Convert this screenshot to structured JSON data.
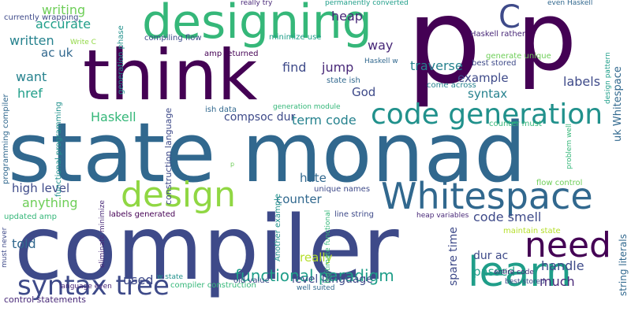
{
  "words": [
    {
      "text": "p",
      "color": "#440154"
    },
    {
      "text": "p",
      "color": "#440154"
    },
    {
      "text": "state monad",
      "color": "#31688e"
    },
    {
      "text": "compiler",
      "color": "#3e4a89"
    },
    {
      "text": "think",
      "color": "#440154"
    },
    {
      "text": "designing",
      "color": "#35b779"
    },
    {
      "text": "Whitespace",
      "color": "#31688e"
    },
    {
      "text": "code generation",
      "color": "#21918c"
    },
    {
      "text": "design",
      "color": "#90d743"
    },
    {
      "text": "need",
      "color": "#440154"
    },
    {
      "text": "learn",
      "color": "#1f9e89"
    },
    {
      "text": "syntax tree",
      "color": "#3e4a89"
    },
    {
      "text": "functional paradigm",
      "color": "#1f9e89"
    },
    {
      "text": "C",
      "color": "#3e4a89"
    },
    {
      "text": "writing",
      "color": "#6ece58"
    },
    {
      "text": "accurate",
      "color": "#1f9e89"
    },
    {
      "text": "written",
      "color": "#26828e"
    },
    {
      "text": "ac uk",
      "color": "#31688e"
    },
    {
      "text": "want",
      "color": "#26828e"
    },
    {
      "text": "href",
      "color": "#1f9e89"
    },
    {
      "text": "Haskell",
      "color": "#35b779"
    },
    {
      "text": "high level",
      "color": "#3e4a89"
    },
    {
      "text": "anything",
      "color": "#6ece58"
    },
    {
      "text": "told",
      "color": "#31688e"
    },
    {
      "text": "used",
      "color": "#3e4a89"
    },
    {
      "text": "heap",
      "color": "#482878"
    },
    {
      "text": "way",
      "color": "#482878"
    },
    {
      "text": "find",
      "color": "#3e4a89"
    },
    {
      "text": "jump",
      "color": "#482878"
    },
    {
      "text": "traverse",
      "color": "#26828e"
    },
    {
      "text": "example",
      "color": "#3e4a89"
    },
    {
      "text": "God",
      "color": "#3e4a89"
    },
    {
      "text": "syntax",
      "color": "#26828e"
    },
    {
      "text": "labels",
      "color": "#3e4a89"
    },
    {
      "text": "term code",
      "color": "#26828e"
    },
    {
      "text": "compsoc dur",
      "color": "#3e4a89"
    },
    {
      "text": "counter",
      "color": "#31688e"
    },
    {
      "text": "hate",
      "color": "#31688e"
    },
    {
      "text": "really",
      "color": "#b5de2b"
    },
    {
      "text": "code smell",
      "color": "#3e4a89"
    },
    {
      "text": "handle",
      "color": "#3e4a89"
    },
    {
      "text": "passed",
      "color": "#1f9e89"
    },
    {
      "text": "much",
      "color": "#482878"
    },
    {
      "text": "dur ac",
      "color": "#3e4a89"
    },
    {
      "text": "level language",
      "color": "#3e4a89"
    },
    {
      "text": "spare time",
      "color": "#3e4a89"
    },
    {
      "text": "uk Whitespace",
      "color": "#31688e"
    },
    {
      "text": "string literals",
      "color": "#31688e"
    },
    {
      "text": "currently wrapping",
      "color": "#3e4a89"
    },
    {
      "text": "Write C",
      "color": "#90d743"
    },
    {
      "text": "generation phase",
      "color": "#21918c"
    },
    {
      "text": "really try",
      "color": "#482878"
    },
    {
      "text": "permanently converted",
      "color": "#1f9e89"
    },
    {
      "text": "minimize use",
      "color": "#1f9e89"
    },
    {
      "text": "compiling flow",
      "color": "#3e4a89"
    },
    {
      "text": "amp returned",
      "color": "#440154"
    },
    {
      "text": "construction language",
      "color": "#3e4a89"
    },
    {
      "text": "ish data",
      "color": "#31688e"
    },
    {
      "text": "generation module",
      "color": "#35b779"
    },
    {
      "text": "state ish",
      "color": "#31688e"
    },
    {
      "text": "Haskell w",
      "color": "#31688e"
    },
    {
      "text": "come across",
      "color": "#26828e"
    },
    {
      "text": "best stored",
      "color": "#3e4a89"
    },
    {
      "text": "generate unique",
      "color": "#6ece58"
    },
    {
      "text": "Haskell rather",
      "color": "#482878"
    },
    {
      "text": "even Haskell",
      "color": "#31688e"
    },
    {
      "text": "design pattern",
      "color": "#1f9e89"
    },
    {
      "text": "counter must",
      "color": "#35b779"
    },
    {
      "text": "problem well",
      "color": "#35b779"
    },
    {
      "text": "flow control",
      "color": "#6ece58"
    },
    {
      "text": "unique names",
      "color": "#3e4a89"
    },
    {
      "text": "line string",
      "color": "#3e4a89"
    },
    {
      "text": "heap variables",
      "color": "#482878"
    },
    {
      "text": "maintain state",
      "color": "#b5de2b"
    },
    {
      "text": "entire code",
      "color": "#482878"
    },
    {
      "text": "best stored",
      "color": "#3e4a89"
    },
    {
      "text": "labels generated",
      "color": "#440154"
    },
    {
      "text": "updated amp",
      "color": "#35b779"
    },
    {
      "text": "must never",
      "color": "#3e4a89"
    },
    {
      "text": "eliminate minimize",
      "color": "#482878"
    },
    {
      "text": "Another example",
      "color": "#21918c"
    },
    {
      "text": "legitimate functional",
      "color": "#35b779"
    },
    {
      "text": "functional programming",
      "color": "#21918c"
    },
    {
      "text": "programming compiler",
      "color": "#31688e"
    },
    {
      "text": "control statements",
      "color": "#482878"
    },
    {
      "text": "language even",
      "color": "#482878"
    },
    {
      "text": "compiler construction",
      "color": "#35b779"
    },
    {
      "text": "w state",
      "color": "#21918c"
    },
    {
      "text": "old value",
      "color": "#3e4a89"
    },
    {
      "text": "well suited",
      "color": "#31688e"
    },
    {
      "text": "p",
      "color": "#6ece58"
    }
  ]
}
